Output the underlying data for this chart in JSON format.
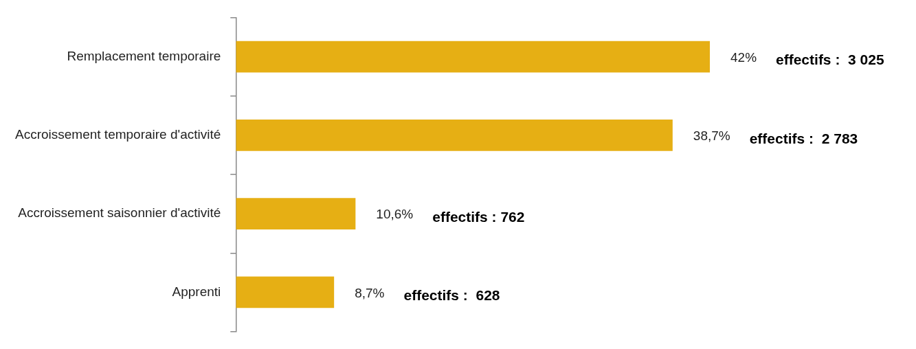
{
  "chart_data": {
    "type": "bar",
    "orientation": "horizontal",
    "categories": [
      "Remplacement temporaire",
      "Accroissement temporaire d'activité",
      "Accroissement saisonnier d'activité",
      "Apprenti"
    ],
    "values": [
      42,
      38.7,
      10.6,
      8.7
    ],
    "value_labels": [
      "42%",
      "38,7%",
      "10,6%",
      "8,7%"
    ],
    "color": "#e6af14",
    "tick_labels": "y",
    "grid": false,
    "legend": false,
    "annotations": [
      "effectifs :  3 025",
      "effectifs :  2 783",
      "effectifs : 762",
      "effectifs :  628"
    ]
  }
}
